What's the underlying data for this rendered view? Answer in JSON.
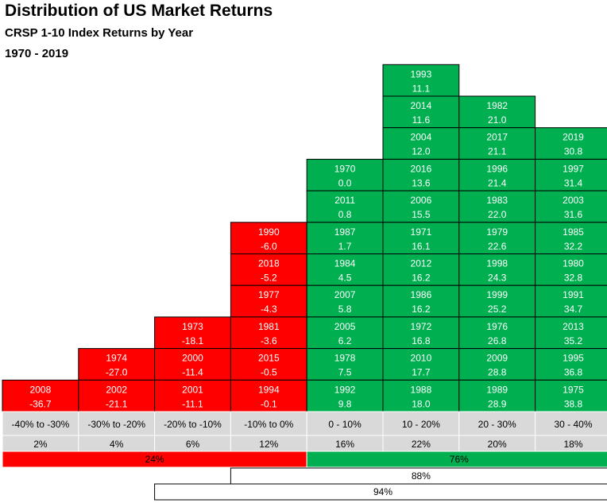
{
  "title": "Distribution of US Market Returns",
  "subtitle": "CRSP 1-10 Index Returns by Year",
  "period": "1970 - 2019",
  "colors": {
    "negative": "#ff0000",
    "positive": "#00b050",
    "label_bg": "#d9d9d9",
    "border": "#000000"
  },
  "chart_data": {
    "type": "table",
    "title": "Distribution of US Market Returns",
    "subtitle": "CRSP 1-10 Index Returns by Year",
    "bins": [
      {
        "range": "-40% to -30%",
        "share": "2%",
        "sign": "negative",
        "entries": [
          {
            "year": "2008",
            "ret": "-36.7"
          }
        ]
      },
      {
        "range": "-30% to -20%",
        "share": "4%",
        "sign": "negative",
        "entries": [
          {
            "year": "1974",
            "ret": "-27.0"
          },
          {
            "year": "2002",
            "ret": "-21.1"
          }
        ]
      },
      {
        "range": "-20% to -10%",
        "share": "6%",
        "sign": "negative",
        "entries": [
          {
            "year": "1973",
            "ret": "-18.1"
          },
          {
            "year": "2000",
            "ret": "-11.4"
          },
          {
            "year": "2001",
            "ret": "-11.1"
          }
        ]
      },
      {
        "range": "-10% to 0%",
        "share": "12%",
        "sign": "negative",
        "entries": [
          {
            "year": "1990",
            "ret": "-6.0"
          },
          {
            "year": "2018",
            "ret": "-5.2"
          },
          {
            "year": "1977",
            "ret": "-4.3"
          },
          {
            "year": "1981",
            "ret": "-3.6"
          },
          {
            "year": "2015",
            "ret": "-0.5"
          },
          {
            "year": "1994",
            "ret": "-0.1"
          }
        ]
      },
      {
        "range": "0 - 10%",
        "share": "16%",
        "sign": "positive",
        "entries": [
          {
            "year": "1970",
            "ret": "0.0"
          },
          {
            "year": "2011",
            "ret": "0.8"
          },
          {
            "year": "1987",
            "ret": "1.7"
          },
          {
            "year": "1984",
            "ret": "4.5"
          },
          {
            "year": "2007",
            "ret": "5.8"
          },
          {
            "year": "2005",
            "ret": "6.2"
          },
          {
            "year": "1978",
            "ret": "7.5"
          },
          {
            "year": "1992",
            "ret": "9.8"
          }
        ]
      },
      {
        "range": "10 - 20%",
        "share": "22%",
        "sign": "positive",
        "entries": [
          {
            "year": "1993",
            "ret": "11.1"
          },
          {
            "year": "2014",
            "ret": "11.6"
          },
          {
            "year": "2004",
            "ret": "12.0"
          },
          {
            "year": "2016",
            "ret": "13.6"
          },
          {
            "year": "2006",
            "ret": "15.5"
          },
          {
            "year": "1971",
            "ret": "16.1"
          },
          {
            "year": "2012",
            "ret": "16.2"
          },
          {
            "year": "1986",
            "ret": "16.2"
          },
          {
            "year": "1972",
            "ret": "16.8"
          },
          {
            "year": "2010",
            "ret": "17.7"
          },
          {
            "year": "1988",
            "ret": "18.0"
          }
        ]
      },
      {
        "range": "20 - 30%",
        "share": "20%",
        "sign": "positive",
        "entries": [
          {
            "year": "1982",
            "ret": "21.0"
          },
          {
            "year": "2017",
            "ret": "21.1"
          },
          {
            "year": "1996",
            "ret": "21.4"
          },
          {
            "year": "1983",
            "ret": "22.0"
          },
          {
            "year": "1979",
            "ret": "22.6"
          },
          {
            "year": "1998",
            "ret": "24.3"
          },
          {
            "year": "1999",
            "ret": "25.2"
          },
          {
            "year": "1976",
            "ret": "26.8"
          },
          {
            "year": "2009",
            "ret": "28.8"
          },
          {
            "year": "1989",
            "ret": "28.9"
          }
        ]
      },
      {
        "range": "30 - 40%",
        "share": "18%",
        "sign": "positive",
        "entries": [
          {
            "year": "2019",
            "ret": "30.8"
          },
          {
            "year": "1997",
            "ret": "31.4"
          },
          {
            "year": "2003",
            "ret": "31.6"
          },
          {
            "year": "1985",
            "ret": "32.2"
          },
          {
            "year": "1980",
            "ret": "32.8"
          },
          {
            "year": "1991",
            "ret": "34.7"
          },
          {
            "year": "2013",
            "ret": "35.2"
          },
          {
            "year": "1995",
            "ret": "36.8"
          },
          {
            "year": "1975",
            "ret": "38.8"
          }
        ]
      }
    ],
    "summaries": [
      {
        "label": "24%",
        "color": "negative",
        "from_bin": 0,
        "to_bin": 3
      },
      {
        "label": "76%",
        "color": "positive",
        "from_bin": 4,
        "to_bin": 7
      },
      {
        "label": "88%",
        "color": "none",
        "from_bin": 3,
        "to_bin": 7
      },
      {
        "label": "94%",
        "color": "none",
        "from_bin": 2,
        "to_bin": 7
      }
    ]
  }
}
